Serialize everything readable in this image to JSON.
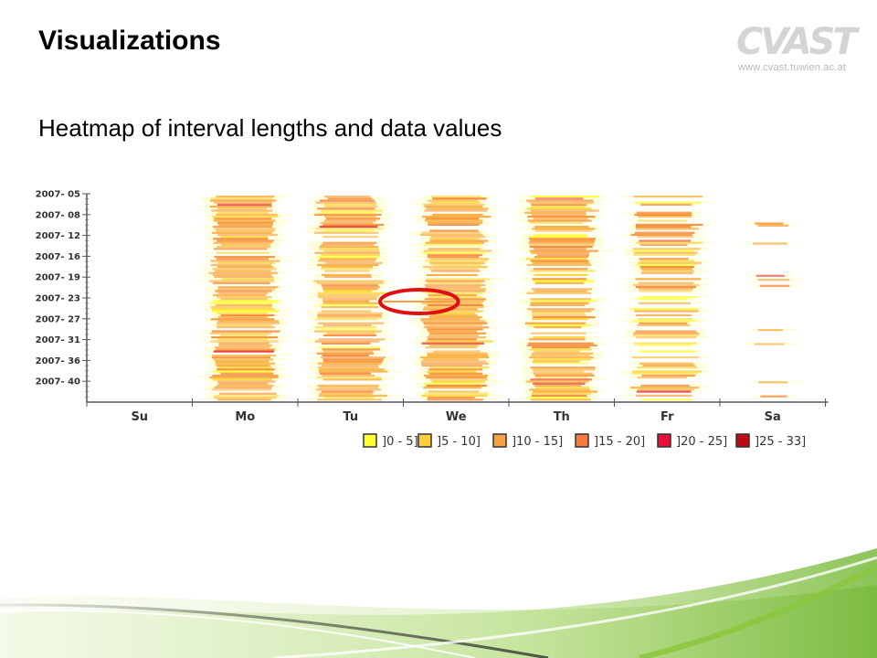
{
  "slide": {
    "title": "Visualizations",
    "subtitle": "Heatmap of interval lengths and data values"
  },
  "logo": {
    "word": "CVAST",
    "url": "www.cvast.tuwien.ac.at"
  },
  "chart_data": {
    "type": "heatmap",
    "y_ticks": [
      "2007- 05",
      "2007- 08",
      "2007- 12",
      "2007- 16",
      "2007- 19",
      "2007- 23",
      "2007- 27",
      "2007- 31",
      "2007- 36",
      "2007- 40"
    ],
    "x_categories": [
      "Su",
      "Mo",
      "Tu",
      "We",
      "Th",
      "Fr",
      "Sa"
    ],
    "legend": [
      {
        "label": "]0 - 5]",
        "color": "#ffff33"
      },
      {
        "label": "]5 - 10]",
        "color": "#fcd03c"
      },
      {
        "label": "]10 - 15]",
        "color": "#f9a043"
      },
      {
        "label": "]15 - 20]",
        "color": "#f57940"
      },
      {
        "label": "]20 - 25]",
        "color": "#e8103a"
      },
      {
        "label": "]25 - 33]",
        "color": "#bf0a14"
      }
    ],
    "column_density": {
      "Su": 0,
      "Mo": 0.9,
      "Tu": 0.9,
      "We": 0.9,
      "Th": 0.9,
      "Fr": 0.65,
      "Sa": 0.08
    },
    "highlight": {
      "day_span": [
        "Tu",
        "We"
      ],
      "tick": "2007- 23",
      "color": "#e01010"
    },
    "grid": false
  }
}
